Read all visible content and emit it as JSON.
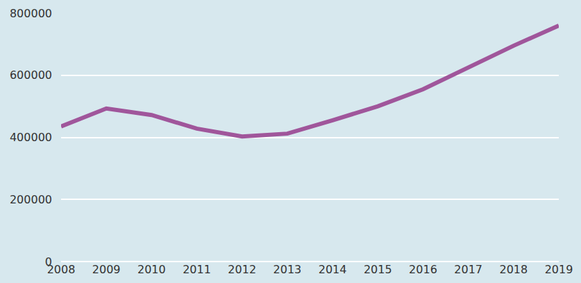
{
  "chart_data": {
    "type": "line",
    "categories": [
      "2008",
      "2009",
      "2010",
      "2011",
      "2012",
      "2013",
      "2014",
      "2015",
      "2016",
      "2017",
      "2018",
      "2019"
    ],
    "values": [
      435000,
      493000,
      472000,
      428000,
      403000,
      412000,
      455000,
      500000,
      555000,
      625000,
      695000,
      760000
    ],
    "color": "#a0569b",
    "ylim": [
      0,
      800000
    ],
    "yticks": [
      0,
      200000,
      400000,
      600000,
      800000
    ],
    "grid": true
  }
}
